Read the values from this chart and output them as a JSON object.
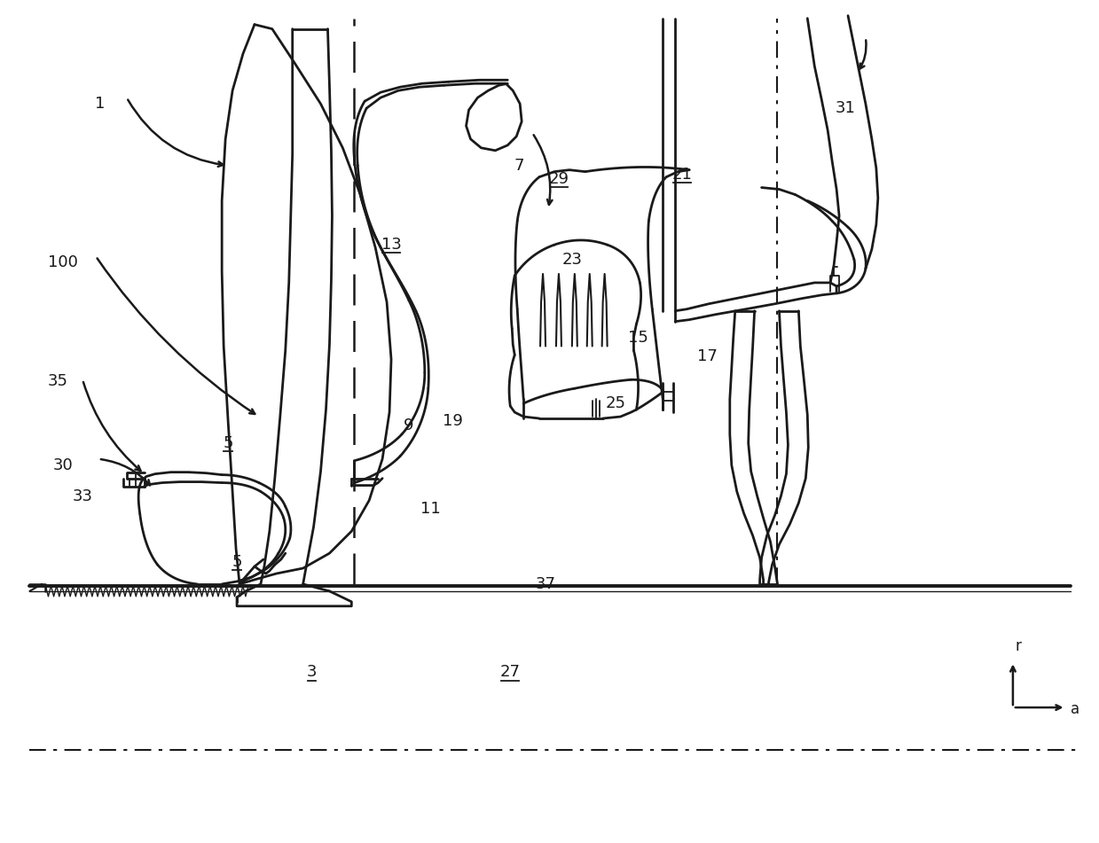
{
  "bg_color": "#ffffff",
  "line_color": "#1a1a1a",
  "lw": 2.0,
  "lw_thin": 1.3,
  "fig_w": 12.39,
  "fig_h": 9.51,
  "dpi": 100
}
